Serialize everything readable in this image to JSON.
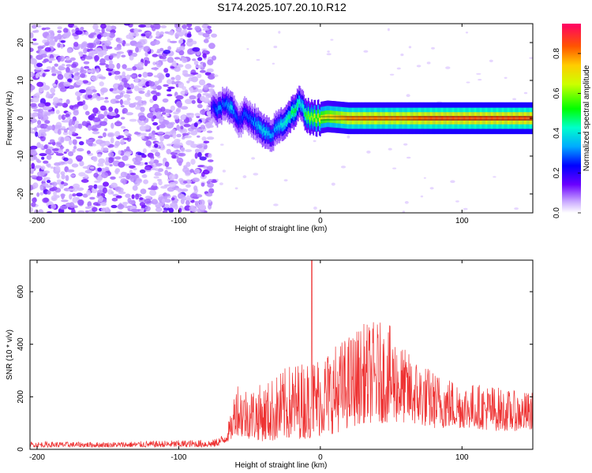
{
  "title": "S174.2025.107.20.10.R12",
  "colors": {
    "snr_line": "#ee3333",
    "background": "#ffffff",
    "axis": "#000000"
  },
  "chart_data": [
    {
      "type": "heatmap",
      "title": "S174.2025.107.20.10.R12",
      "xlabel": "Height of straight line (km)",
      "ylabel": "Frequency (Hz)",
      "xlim": [
        -205,
        150
      ],
      "ylim": [
        -25,
        25
      ],
      "x_ticks": [
        -200,
        -100,
        0,
        100
      ],
      "x_tick_labels": [
        "-200",
        "-100",
        "0",
        "100"
      ],
      "y_ticks": [
        -20,
        -10,
        0,
        10,
        20
      ],
      "y_tick_labels": [
        "-20",
        "-10",
        "0",
        "10",
        "20"
      ],
      "colorbar": {
        "label": "Normalized spectral amplitude",
        "range": [
          0,
          0.95
        ],
        "ticks": [
          0,
          0.2,
          0.4,
          0.6,
          0.8
        ],
        "tick_labels": [
          "0.0",
          "0.2",
          "0.4",
          "0.6",
          "0.8"
        ],
        "colormap": "rainbow"
      },
      "noise_region": {
        "x_from": -205,
        "x_to": -75,
        "amplitude_approx": 0.1
      },
      "ridge": {
        "x": [
          -77,
          -72,
          -68,
          -63,
          -60,
          -57,
          -54,
          -50,
          -46,
          -42,
          -38,
          -35,
          -32,
          -29,
          -25,
          -21,
          -18,
          -15,
          -13,
          -10,
          -6,
          -2,
          5,
          20,
          40,
          60,
          80,
          100,
          120,
          150
        ],
        "frequency": [
          3,
          2,
          4,
          3,
          1,
          -1,
          1,
          0,
          -1,
          -3,
          -4,
          -5,
          -3,
          -2,
          -1,
          1,
          2,
          4,
          3,
          1,
          0,
          0,
          0.5,
          0,
          0,
          0,
          0,
          0,
          0,
          0
        ],
        "amplitude": [
          0.2,
          0.35,
          0.3,
          0.4,
          0.3,
          0.25,
          0.3,
          0.3,
          0.35,
          0.4,
          0.4,
          0.35,
          0.35,
          0.4,
          0.45,
          0.5,
          0.55,
          0.45,
          0.4,
          0.6,
          0.65,
          0.7,
          0.75,
          0.85,
          0.85,
          0.85,
          0.9,
          0.9,
          0.9,
          0.9
        ]
      }
    },
    {
      "type": "line",
      "xlabel": "Height of straight line (km)",
      "ylabel": "SNR (10 * v/v)",
      "xlim": [
        -205,
        150
      ],
      "ylim": [
        0,
        720
      ],
      "x_ticks": [
        -200,
        -100,
        0,
        100
      ],
      "x_tick_labels": [
        "-200",
        "-100",
        "0",
        "100"
      ],
      "y_ticks": [
        0,
        200,
        400,
        600
      ],
      "y_tick_labels": [
        "0",
        "200",
        "400",
        "600"
      ],
      "envelope": {
        "x": [
          -205,
          -150,
          -100,
          -75,
          -68,
          -62,
          -60,
          -55,
          -50,
          -40,
          -30,
          -20,
          -10,
          0,
          10,
          20,
          30,
          40,
          50,
          60,
          70,
          80,
          90,
          100,
          110,
          120,
          130,
          140,
          150
        ],
        "upper": [
          30,
          28,
          35,
          38,
          60,
          150,
          280,
          250,
          240,
          250,
          290,
          330,
          340,
          370,
          400,
          440,
          480,
          490,
          470,
          380,
          340,
          300,
          280,
          260,
          250,
          250,
          230,
          220,
          220
        ],
        "lower": [
          8,
          8,
          8,
          8,
          20,
          40,
          60,
          40,
          40,
          30,
          30,
          40,
          40,
          50,
          60,
          80,
          100,
          100,
          100,
          100,
          90,
          80,
          80,
          80,
          80,
          70,
          70,
          70,
          70
        ]
      },
      "spike": {
        "x": -6,
        "y": 720
      }
    }
  ]
}
